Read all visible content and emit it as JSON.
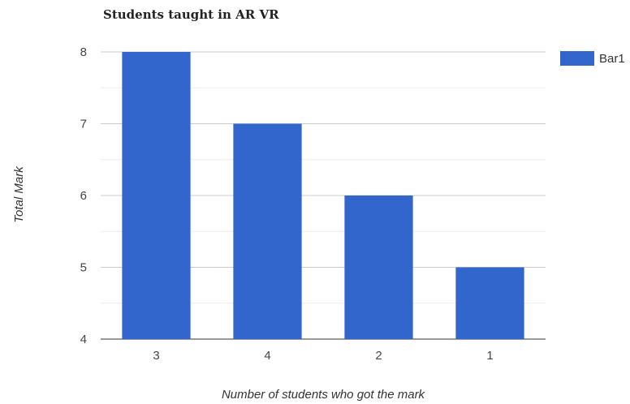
{
  "chart_data": {
    "type": "bar",
    "title": "Students taught in AR VR",
    "xlabel": "Number of students who got the mark",
    "ylabel": "Total Mark",
    "categories": [
      "3",
      "4",
      "2",
      "1"
    ],
    "series": [
      {
        "name": "Bar1",
        "values": [
          8,
          7,
          6,
          5
        ],
        "color": "#3366cc"
      }
    ],
    "ylim": [
      4,
      8
    ],
    "yticks": [
      "4",
      "5",
      "6",
      "7",
      "8"
    ],
    "grid": true,
    "legend_position": "right"
  }
}
